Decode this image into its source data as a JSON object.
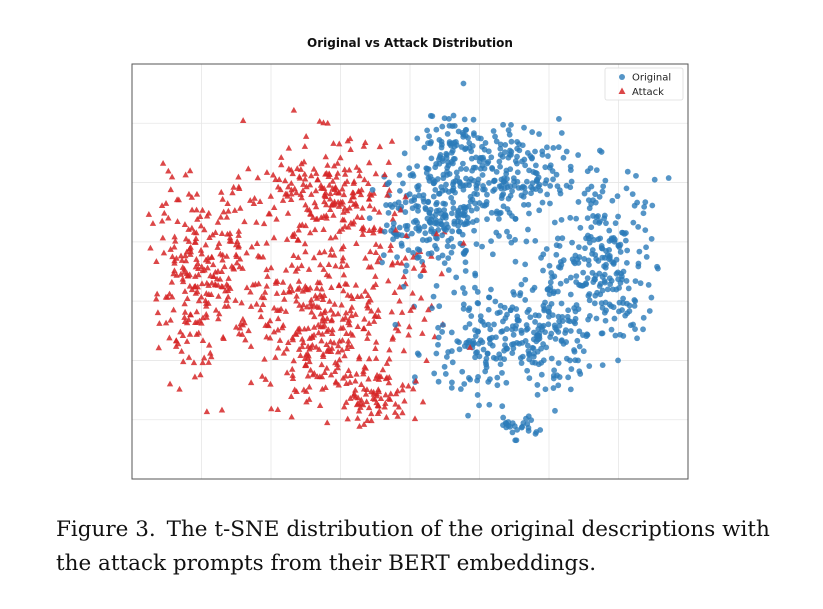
{
  "chart_data": {
    "type": "scatter",
    "title": "Original vs Attack Distribution",
    "xlabel": "",
    "ylabel": "",
    "xlim": [
      0,
      100
    ],
    "ylim": [
      0,
      100
    ],
    "grid": true,
    "tick_labels_visible": false,
    "legend": {
      "placement": "top-right",
      "entries": [
        "Original",
        "Attack"
      ]
    },
    "series": [
      {
        "name": "Original",
        "marker": "circle",
        "color": "#2b7bb9",
        "approx_count": 1100,
        "clusters": [
          {
            "cx": 54,
            "cy": 63,
            "sx": 5,
            "sy": 7,
            "n": 230
          },
          {
            "cx": 67,
            "cy": 73,
            "sx": 6,
            "sy": 6,
            "n": 220
          },
          {
            "cx": 84,
            "cy": 52,
            "sx": 5,
            "sy": 10,
            "n": 250
          },
          {
            "cx": 72,
            "cy": 35,
            "sx": 6,
            "sy": 7,
            "n": 210
          },
          {
            "cx": 57,
            "cy": 80,
            "sx": 3,
            "sy": 4,
            "n": 70
          },
          {
            "cx": 60,
            "cy": 32,
            "sx": 5,
            "sy": 8,
            "n": 80
          },
          {
            "cx": 70,
            "cy": 13,
            "sx": 2,
            "sy": 2,
            "n": 25
          }
        ]
      },
      {
        "name": "Attack",
        "marker": "triangle",
        "color": "#d62728",
        "approx_count": 1000,
        "clusters": [
          {
            "cx": 13,
            "cy": 50,
            "sx": 5,
            "sy": 11,
            "n": 280
          },
          {
            "cx": 33,
            "cy": 38,
            "sx": 6,
            "sy": 9,
            "n": 280
          },
          {
            "cx": 37,
            "cy": 68,
            "sx": 5,
            "sy": 7,
            "n": 180
          },
          {
            "cx": 43,
            "cy": 20,
            "sx": 4,
            "sy": 4,
            "n": 90
          },
          {
            "cx": 47,
            "cy": 48,
            "sx": 5,
            "sy": 9,
            "n": 70
          },
          {
            "cx": 27,
            "cy": 70,
            "sx": 3,
            "sy": 5,
            "n": 40
          }
        ]
      }
    ]
  },
  "caption": {
    "label": "Figure 3.",
    "text": "The t-SNE distribution of the original descriptions with the attack prompts from their BERT embeddings."
  }
}
